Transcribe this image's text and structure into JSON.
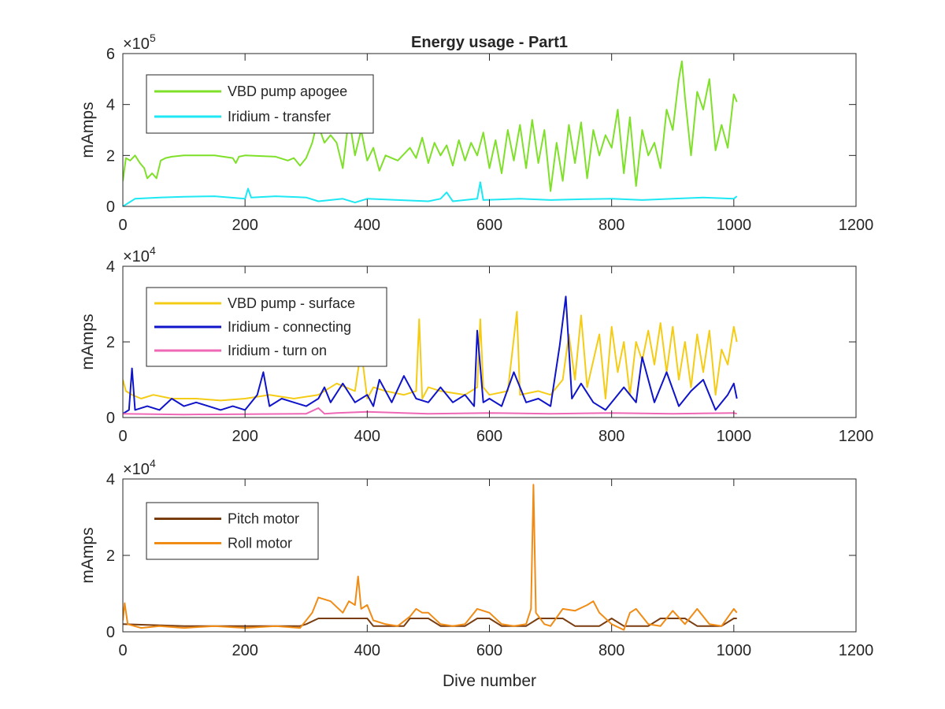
{
  "chart_data": [
    {
      "type": "line",
      "title": "Energy usage - Part1",
      "ylabel": "mAmps",
      "xlabel": "",
      "exponent": {
        "base": "×10",
        "power": "5"
      },
      "xlim": [
        0,
        1200
      ],
      "ylim": [
        0,
        600000
      ],
      "xticks": [
        0,
        200,
        400,
        600,
        800,
        1000,
        1200
      ],
      "yticks": [
        0,
        200000,
        400000,
        600000
      ],
      "ytick_labels": [
        "0",
        "2",
        "4",
        "6"
      ],
      "legend": "top-left",
      "series": [
        {
          "name": "VBD pump apogee",
          "color": "#7fe02a",
          "x": [
            0,
            5,
            12,
            20,
            28,
            35,
            40,
            48,
            55,
            62,
            70,
            80,
            100,
            150,
            180,
            185,
            190,
            200,
            250,
            270,
            280,
            290,
            300,
            310,
            318,
            330,
            340,
            350,
            360,
            370,
            380,
            390,
            400,
            410,
            420,
            430,
            450,
            470,
            480,
            490,
            500,
            510,
            520,
            530,
            540,
            550,
            560,
            570,
            580,
            590,
            600,
            610,
            620,
            630,
            640,
            650,
            660,
            670,
            680,
            690,
            700,
            710,
            720,
            730,
            740,
            750,
            760,
            770,
            780,
            790,
            800,
            810,
            820,
            830,
            840,
            850,
            860,
            870,
            880,
            890,
            900,
            910,
            915,
            920,
            930,
            940,
            950,
            960,
            970,
            980,
            990,
            1000,
            1005
          ],
          "y": [
            100000,
            190000,
            180000,
            200000,
            170000,
            150000,
            110000,
            130000,
            110000,
            180000,
            190000,
            195000,
            200000,
            200000,
            190000,
            170000,
            195000,
            200000,
            195000,
            180000,
            190000,
            160000,
            190000,
            250000,
            330000,
            250000,
            280000,
            250000,
            150000,
            350000,
            200000,
            300000,
            180000,
            230000,
            140000,
            200000,
            180000,
            230000,
            190000,
            270000,
            170000,
            250000,
            200000,
            240000,
            160000,
            260000,
            180000,
            250000,
            200000,
            290000,
            150000,
            260000,
            130000,
            300000,
            180000,
            320000,
            150000,
            340000,
            170000,
            300000,
            60000,
            250000,
            100000,
            320000,
            170000,
            330000,
            110000,
            300000,
            200000,
            280000,
            230000,
            380000,
            130000,
            350000,
            80000,
            300000,
            200000,
            250000,
            150000,
            380000,
            300000,
            500000,
            570000,
            430000,
            200000,
            450000,
            380000,
            500000,
            220000,
            320000,
            230000,
            440000,
            410000
          ]
        },
        {
          "name": "Iridium - transfer",
          "color": "#1de8f3",
          "x": [
            0,
            20,
            60,
            100,
            150,
            200,
            205,
            210,
            250,
            300,
            320,
            360,
            380,
            400,
            450,
            500,
            520,
            530,
            540,
            580,
            585,
            590,
            650,
            700,
            750,
            800,
            850,
            900,
            950,
            1000,
            1005
          ],
          "y": [
            0,
            30000,
            35000,
            38000,
            40000,
            30000,
            70000,
            35000,
            40000,
            35000,
            20000,
            30000,
            15000,
            30000,
            25000,
            20000,
            30000,
            55000,
            20000,
            30000,
            95000,
            25000,
            30000,
            25000,
            28000,
            30000,
            25000,
            30000,
            35000,
            30000,
            40000
          ]
        }
      ]
    },
    {
      "type": "line",
      "title": "",
      "ylabel": "mAmps",
      "xlabel": "",
      "exponent": {
        "base": "×10",
        "power": "4"
      },
      "xlim": [
        0,
        1200
      ],
      "ylim": [
        0,
        40000
      ],
      "xticks": [
        0,
        200,
        400,
        600,
        800,
        1000,
        1200
      ],
      "yticks": [
        0,
        20000,
        40000
      ],
      "ytick_labels": [
        "0",
        "2",
        "4"
      ],
      "legend": "top-left",
      "series": [
        {
          "name": "VBD pump - surface",
          "color": "#f5cc15",
          "x": [
            0,
            5,
            15,
            30,
            50,
            80,
            120,
            160,
            200,
            240,
            280,
            320,
            350,
            380,
            390,
            400,
            410,
            430,
            460,
            480,
            485,
            490,
            500,
            520,
            560,
            580,
            585,
            590,
            600,
            630,
            645,
            650,
            680,
            700,
            720,
            730,
            740,
            750,
            760,
            780,
            790,
            800,
            810,
            820,
            830,
            840,
            850,
            860,
            870,
            880,
            890,
            900,
            910,
            920,
            930,
            940,
            950,
            960,
            970,
            980,
            990,
            1000,
            1005
          ],
          "y": [
            10000,
            7000,
            6000,
            5000,
            6000,
            5000,
            5000,
            4500,
            5000,
            6000,
            5000,
            6000,
            9000,
            7000,
            18000,
            5000,
            8000,
            7000,
            6000,
            7000,
            26000,
            5000,
            8000,
            7000,
            6000,
            8000,
            26000,
            8000,
            6000,
            7000,
            28000,
            6000,
            7000,
            6000,
            10000,
            22000,
            10000,
            27000,
            8000,
            22000,
            5000,
            24000,
            12000,
            20000,
            6000,
            20000,
            15000,
            23000,
            14000,
            25000,
            12000,
            24000,
            10000,
            20000,
            8000,
            22000,
            12000,
            23000,
            6000,
            18000,
            14000,
            24000,
            20000
          ]
        },
        {
          "name": "Iridium - connecting",
          "color": "#0f14c8",
          "x": [
            0,
            10,
            15,
            20,
            40,
            60,
            80,
            100,
            120,
            140,
            160,
            180,
            200,
            220,
            230,
            240,
            260,
            280,
            300,
            320,
            330,
            340,
            360,
            380,
            400,
            410,
            420,
            440,
            460,
            480,
            500,
            520,
            540,
            560,
            575,
            580,
            590,
            600,
            620,
            640,
            660,
            680,
            700,
            715,
            725,
            735,
            750,
            770,
            790,
            800,
            820,
            840,
            850,
            870,
            890,
            910,
            930,
            950,
            970,
            990,
            1000,
            1005
          ],
          "y": [
            1000,
            2000,
            13000,
            2000,
            3000,
            2000,
            5000,
            3000,
            4000,
            3000,
            2000,
            3000,
            2000,
            6000,
            12000,
            3000,
            5000,
            4000,
            3000,
            5000,
            8000,
            4000,
            9000,
            4000,
            6000,
            3000,
            10000,
            4000,
            11000,
            5000,
            4000,
            8000,
            4000,
            6000,
            3000,
            23000,
            4000,
            5000,
            3000,
            12000,
            4000,
            5000,
            3000,
            19000,
            32000,
            5000,
            9000,
            4000,
            2000,
            4000,
            8000,
            4000,
            16000,
            4000,
            12000,
            3000,
            7000,
            10000,
            2000,
            6000,
            9000,
            5000
          ]
        },
        {
          "name": "Iridium - turn on",
          "color": "#ee68b5",
          "x": [
            0,
            100,
            200,
            300,
            320,
            330,
            350,
            400,
            500,
            600,
            700,
            800,
            900,
            1000,
            1005
          ],
          "y": [
            1000,
            800,
            900,
            1000,
            2500,
            1000,
            1200,
            1500,
            1000,
            1200,
            1000,
            1200,
            1000,
            1200,
            1000
          ]
        }
      ]
    },
    {
      "type": "line",
      "title": "",
      "ylabel": "mAmps",
      "xlabel": "Dive number",
      "exponent": {
        "base": "×10",
        "power": "4"
      },
      "xlim": [
        0,
        1200
      ],
      "ylim": [
        0,
        40000
      ],
      "xticks": [
        0,
        200,
        400,
        600,
        800,
        1000,
        1200
      ],
      "yticks": [
        0,
        20000,
        40000
      ],
      "ytick_labels": [
        "0",
        "2",
        "4"
      ],
      "legend": "top-left",
      "series": [
        {
          "name": "Pitch motor",
          "color": "#7a3d10",
          "x": [
            0,
            100,
            200,
            290,
            300,
            320,
            360,
            400,
            410,
            460,
            470,
            500,
            520,
            560,
            580,
            600,
            620,
            660,
            680,
            720,
            740,
            780,
            800,
            820,
            860,
            880,
            920,
            940,
            980,
            1000,
            1005
          ],
          "y": [
            2000,
            1500,
            1500,
            1500,
            2000,
            3500,
            3500,
            3500,
            1500,
            1500,
            3500,
            3500,
            1500,
            1500,
            3500,
            3500,
            1500,
            1500,
            3500,
            3500,
            1500,
            1500,
            3500,
            1500,
            1500,
            3500,
            3500,
            1500,
            1500,
            3500,
            3500
          ]
        },
        {
          "name": "Roll motor",
          "color": "#f08c16",
          "x": [
            0,
            3,
            8,
            30,
            60,
            100,
            150,
            200,
            250,
            290,
            300,
            310,
            320,
            340,
            360,
            370,
            380,
            385,
            390,
            400,
            410,
            430,
            450,
            470,
            480,
            490,
            500,
            520,
            540,
            560,
            580,
            590,
            600,
            620,
            640,
            660,
            668,
            672,
            676,
            690,
            700,
            720,
            740,
            760,
            770,
            780,
            800,
            820,
            830,
            840,
            860,
            880,
            900,
            920,
            940,
            960,
            980,
            1000,
            1005
          ],
          "y": [
            3000,
            7500,
            2000,
            1000,
            1500,
            1000,
            1500,
            1000,
            1500,
            1000,
            3000,
            5000,
            9000,
            8000,
            5000,
            8000,
            7000,
            14500,
            6000,
            7000,
            3000,
            2000,
            1500,
            4000,
            6000,
            5000,
            5000,
            2000,
            1500,
            2000,
            6000,
            5500,
            5000,
            2000,
            1500,
            2000,
            6000,
            38500,
            5000,
            2000,
            1500,
            6000,
            5500,
            7000,
            8000,
            5000,
            2000,
            500,
            5000,
            6000,
            2000,
            1500,
            5500,
            2000,
            6000,
            2000,
            1500,
            6000,
            5000
          ]
        }
      ]
    }
  ]
}
